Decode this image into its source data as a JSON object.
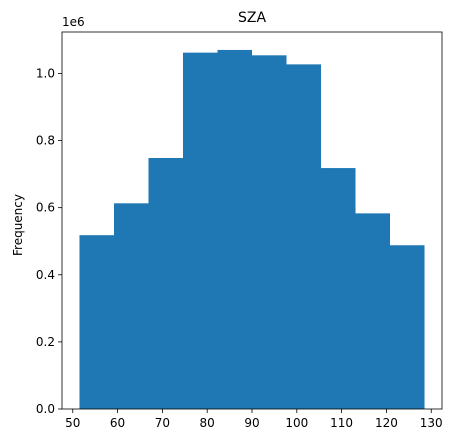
{
  "chart_data": {
    "type": "histogram",
    "title": "SZA",
    "xlabel": "",
    "ylabel": "Frequency",
    "y_offset_text": "1e6",
    "bar_color": "#1f77b4",
    "bins": [
      {
        "x0": 51.5,
        "x1": 59.2,
        "value": 518000
      },
      {
        "x0": 59.2,
        "x1": 66.9,
        "value": 613000
      },
      {
        "x0": 66.9,
        "x1": 74.6,
        "value": 748000
      },
      {
        "x0": 74.6,
        "x1": 82.3,
        "value": 1062000
      },
      {
        "x0": 82.3,
        "x1": 90.0,
        "value": 1070000
      },
      {
        "x0": 90.0,
        "x1": 97.7,
        "value": 1054000
      },
      {
        "x0": 97.7,
        "x1": 105.4,
        "value": 1027000
      },
      {
        "x0": 105.4,
        "x1": 113.1,
        "value": 718000
      },
      {
        "x0": 113.1,
        "x1": 120.8,
        "value": 583000
      },
      {
        "x0": 120.8,
        "x1": 128.5,
        "value": 488000
      }
    ],
    "xlim": [
      47.6,
      132.4
    ],
    "ylim": [
      0,
      1123500
    ],
    "x_ticks": [
      50,
      60,
      70,
      80,
      90,
      100,
      110,
      120,
      130
    ],
    "x_tick_labels": [
      "50",
      "60",
      "70",
      "80",
      "90",
      "100",
      "110",
      "120",
      "130"
    ],
    "y_ticks": [
      0,
      200000,
      400000,
      600000,
      800000,
      1000000
    ],
    "y_tick_labels": [
      "0.0",
      "0.2",
      "0.4",
      "0.6",
      "0.8",
      "1.0"
    ],
    "grid": false,
    "legend": "none"
  }
}
